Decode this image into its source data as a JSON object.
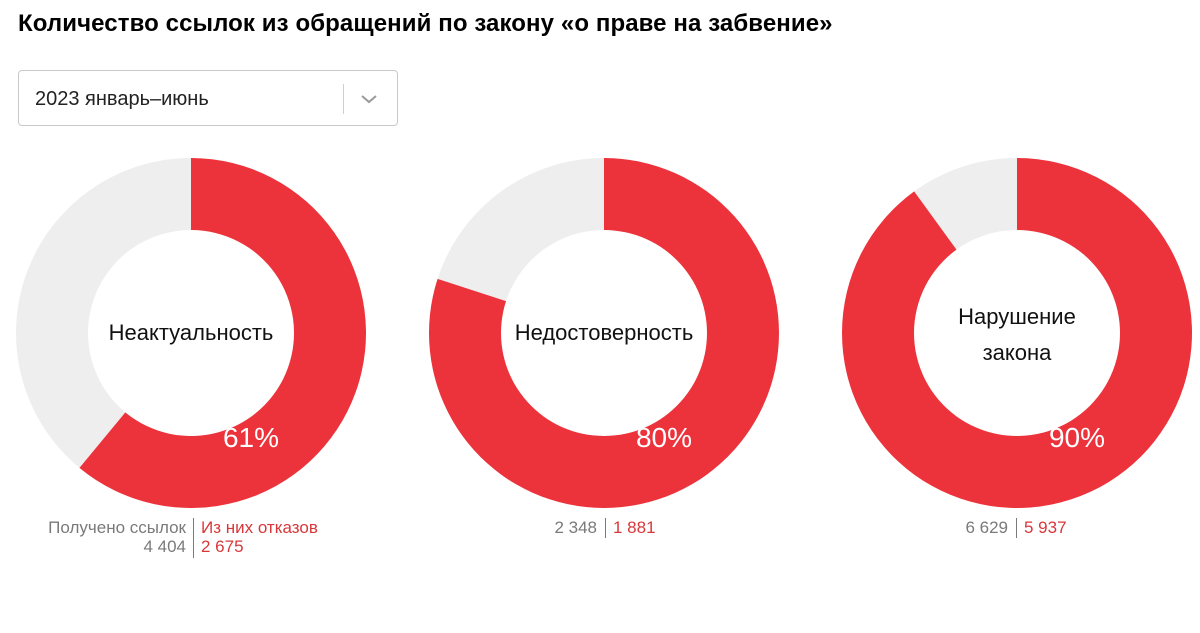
{
  "title": "Количество ссылок из обращений по закону «о праве на забвение»",
  "period_select": {
    "value": "2023 январь–июнь",
    "icon": "chevron-down-icon"
  },
  "colors": {
    "accent": "#ec333b",
    "rest": "#eeeeee"
  },
  "stats_headers": {
    "received": "Получено ссылок",
    "refused": "Из них отказов"
  },
  "chart_data": [
    {
      "type": "pie",
      "label_lines": [
        "Неактуальность"
      ],
      "percent": 61,
      "percent_label": "61%",
      "received": "4 404",
      "refused": "2 675"
    },
    {
      "type": "pie",
      "label_lines": [
        "Недостоверность"
      ],
      "percent": 80,
      "percent_label": "80%",
      "received": "2 348",
      "refused": "1 881"
    },
    {
      "type": "pie",
      "label_lines": [
        "Нарушение",
        "закона"
      ],
      "percent": 90,
      "percent_label": "90%",
      "received": "6 629",
      "refused": "5 937"
    }
  ]
}
